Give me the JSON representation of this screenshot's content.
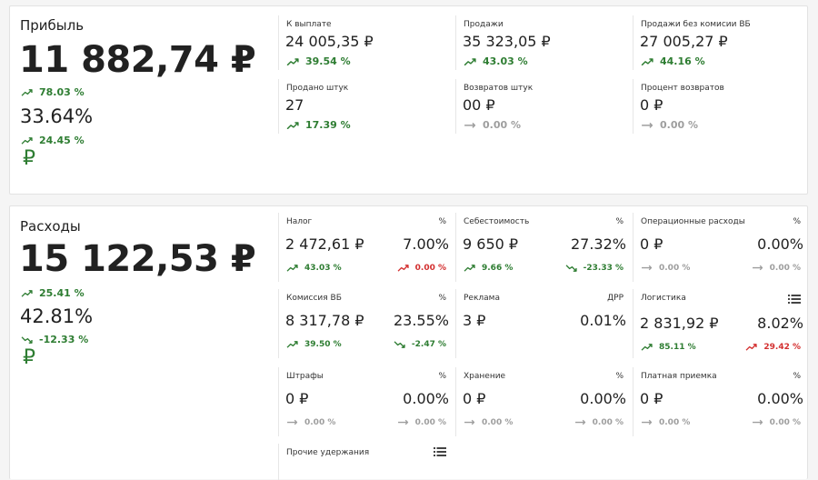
{
  "profit": {
    "title": "Прибыль",
    "value": "11 882,74 ₽",
    "trend": {
      "text": "78.03 %",
      "dir": "up",
      "color": "#2e7d32"
    },
    "percent": "33.64%",
    "percent_trend": {
      "text": "24.45 %",
      "dir": "up",
      "color": "#2e7d32"
    },
    "currency": "₽",
    "metrics": [
      {
        "label": "К выплате",
        "value": "24 005,35 ₽",
        "trend": {
          "text": "39.54 %",
          "dir": "up",
          "color": "#2e7d32"
        }
      },
      {
        "label": "Продажи",
        "value": "35 323,05 ₽",
        "trend": {
          "text": "43.03 %",
          "dir": "up",
          "color": "#2e7d32"
        }
      },
      {
        "label": "Продажи без комисии ВБ",
        "value": "27 005,27 ₽",
        "trend": {
          "text": "44.16 %",
          "dir": "up",
          "color": "#2e7d32"
        }
      },
      {
        "label": "Продано штук",
        "value": "27",
        "trend": {
          "text": "17.39 %",
          "dir": "up",
          "color": "#2e7d32"
        }
      },
      {
        "label": "Возвратов штук",
        "value": "00 ₽",
        "trend": {
          "text": "0.00 %",
          "dir": "flat",
          "color": "#9e9e9e"
        }
      },
      {
        "label": "Процент возвратов",
        "value": "0 ₽",
        "trend": {
          "text": "0.00 %",
          "dir": "flat",
          "color": "#9e9e9e"
        }
      }
    ]
  },
  "expenses": {
    "title": "Расходы",
    "value": "15 122,53 ₽",
    "trend": {
      "text": "25.41 %",
      "dir": "up",
      "color": "#2e7d32"
    },
    "percent": "42.81%",
    "percent_trend": {
      "text": "-12.33 %",
      "dir": "down",
      "color": "#2e7d32"
    },
    "currency": "₽",
    "metrics": [
      {
        "label": "Налог",
        "side_label": "%",
        "value": "2 472,61 ₽",
        "percent": "7.00%",
        "trends": [
          {
            "text": "43.03 %",
            "dir": "up",
            "color": "#2e7d32"
          },
          {
            "text": "0.00 %",
            "dir": "up",
            "color": "#d32f2f"
          }
        ]
      },
      {
        "label": "Себестоимость",
        "side_label": "%",
        "value": "9 650 ₽",
        "percent": "27.32%",
        "trends": [
          {
            "text": "9.66 %",
            "dir": "up",
            "color": "#2e7d32"
          },
          {
            "text": "-23.33 %",
            "dir": "down",
            "color": "#2e7d32"
          }
        ]
      },
      {
        "label": "Операционные расходы",
        "side_label": "%",
        "value": "0 ₽",
        "percent": "0.00%",
        "trends": [
          {
            "text": "0.00 %",
            "dir": "flat",
            "color": "#9e9e9e"
          },
          {
            "text": "0.00 %",
            "dir": "flat",
            "color": "#9e9e9e"
          }
        ]
      },
      {
        "label": "Комиссия ВБ",
        "side_label": "%",
        "value": "8 317,78 ₽",
        "percent": "23.55%",
        "trends": [
          {
            "text": "39.50 %",
            "dir": "up",
            "color": "#2e7d32"
          },
          {
            "text": "-2.47 %",
            "dir": "down",
            "color": "#2e7d32"
          }
        ]
      },
      {
        "label": "Реклама",
        "side_label": "ДРР",
        "value": "3 ₽",
        "percent": "0.01%",
        "trends": []
      },
      {
        "label": "Логистика",
        "side_icon": "list",
        "value": "2 831,92 ₽",
        "percent": "8.02%",
        "trends": [
          {
            "text": "85.11 %",
            "dir": "up",
            "color": "#2e7d32"
          },
          {
            "text": "29.42 %",
            "dir": "up",
            "color": "#d32f2f"
          }
        ]
      },
      {
        "label": "Штрафы",
        "side_label": "%",
        "value": "0 ₽",
        "percent": "0.00%",
        "trends": [
          {
            "text": "0.00 %",
            "dir": "flat",
            "color": "#9e9e9e"
          },
          {
            "text": "0.00 %",
            "dir": "flat",
            "color": "#9e9e9e"
          }
        ]
      },
      {
        "label": "Хранение",
        "side_label": "%",
        "value": "0 ₽",
        "percent": "0.00%",
        "trends": [
          {
            "text": "0.00 %",
            "dir": "flat",
            "color": "#9e9e9e"
          },
          {
            "text": "0.00 %",
            "dir": "flat",
            "color": "#9e9e9e"
          }
        ]
      },
      {
        "label": "Платная приемка",
        "side_label": "%",
        "value": "0 ₽",
        "percent": "0.00%",
        "trends": [
          {
            "text": "0.00 %",
            "dir": "flat",
            "color": "#9e9e9e"
          },
          {
            "text": "0.00 %",
            "dir": "flat",
            "color": "#9e9e9e"
          }
        ]
      },
      {
        "label": "Прочие удержания",
        "side_icon": "list"
      }
    ]
  }
}
